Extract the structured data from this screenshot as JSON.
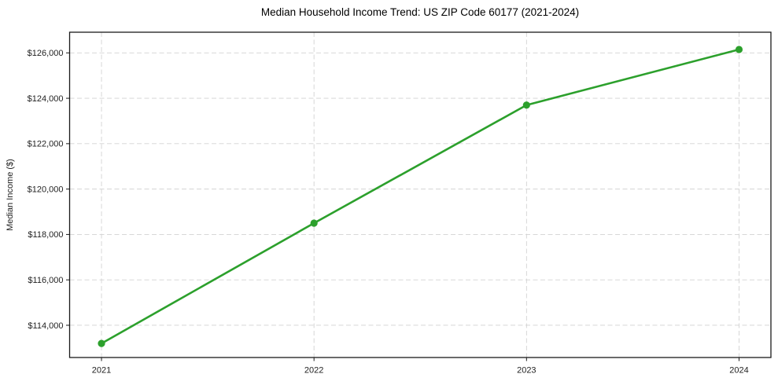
{
  "chart_data": {
    "type": "line",
    "title": "Median Household Income Trend: US ZIP Code 60177 (2021-2024)",
    "xlabel": "",
    "ylabel": "Median Income ($)",
    "x": [
      2021,
      2022,
      2023,
      2024
    ],
    "x_tick_labels": [
      "2021",
      "2022",
      "2023",
      "2024"
    ],
    "series": [
      {
        "name": "Median Household Income",
        "values": [
          113200,
          118500,
          123700,
          126150
        ]
      }
    ],
    "yticks": [
      114000,
      116000,
      118000,
      120000,
      122000,
      124000,
      126000
    ],
    "ytick_labels": [
      "$114,000",
      "$116,000",
      "$118,000",
      "$120,000",
      "$122,000",
      "$124,000",
      "$126,000"
    ],
    "xlim": [
      2020.85,
      2024.15
    ],
    "ylim": [
      112580,
      126910
    ],
    "grid": true,
    "grid_style": "dashed",
    "legend_position": "none",
    "colors": {
      "line": "#2ca02c",
      "marker": "#2ca02c",
      "grid": "#d2d2d2",
      "spine": "#1a1a1a",
      "text": "#1f1f1f",
      "background": "#ffffff"
    }
  }
}
